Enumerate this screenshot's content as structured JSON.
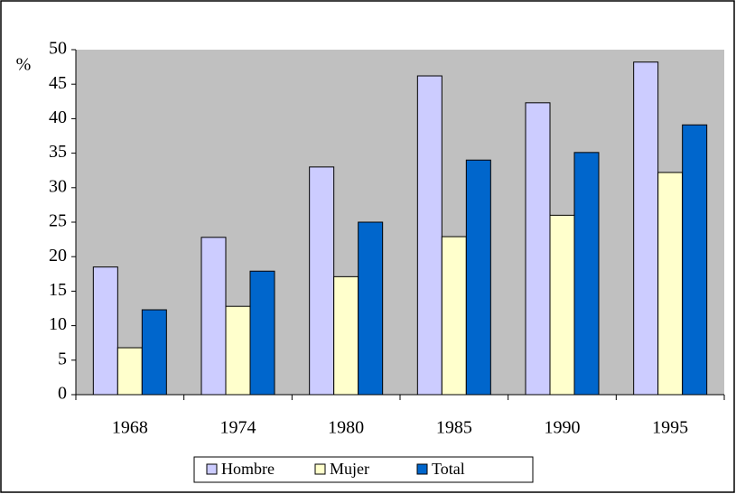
{
  "chart_data": {
    "type": "bar",
    "y_label": "%",
    "categories": [
      "1968",
      "1974",
      "1980",
      "1985",
      "1990",
      "1995"
    ],
    "series": [
      {
        "name": "Hombre",
        "color": "#ccccff",
        "values": [
          18.5,
          22.8,
          33.0,
          46.2,
          42.3,
          48.2
        ]
      },
      {
        "name": "Mujer",
        "color": "#ffffcc",
        "values": [
          6.8,
          12.8,
          17.1,
          22.9,
          26.0,
          32.2
        ]
      },
      {
        "name": "Total",
        "color": "#0066cc",
        "values": [
          12.3,
          17.9,
          25.0,
          34.0,
          35.1,
          39.1
        ]
      }
    ],
    "ylim": [
      0,
      50
    ],
    "yticks": [
      0,
      5,
      10,
      15,
      20,
      25,
      30,
      35,
      40,
      45,
      50
    ],
    "plot_background": "#c0c0c0",
    "legend": "bottom"
  }
}
